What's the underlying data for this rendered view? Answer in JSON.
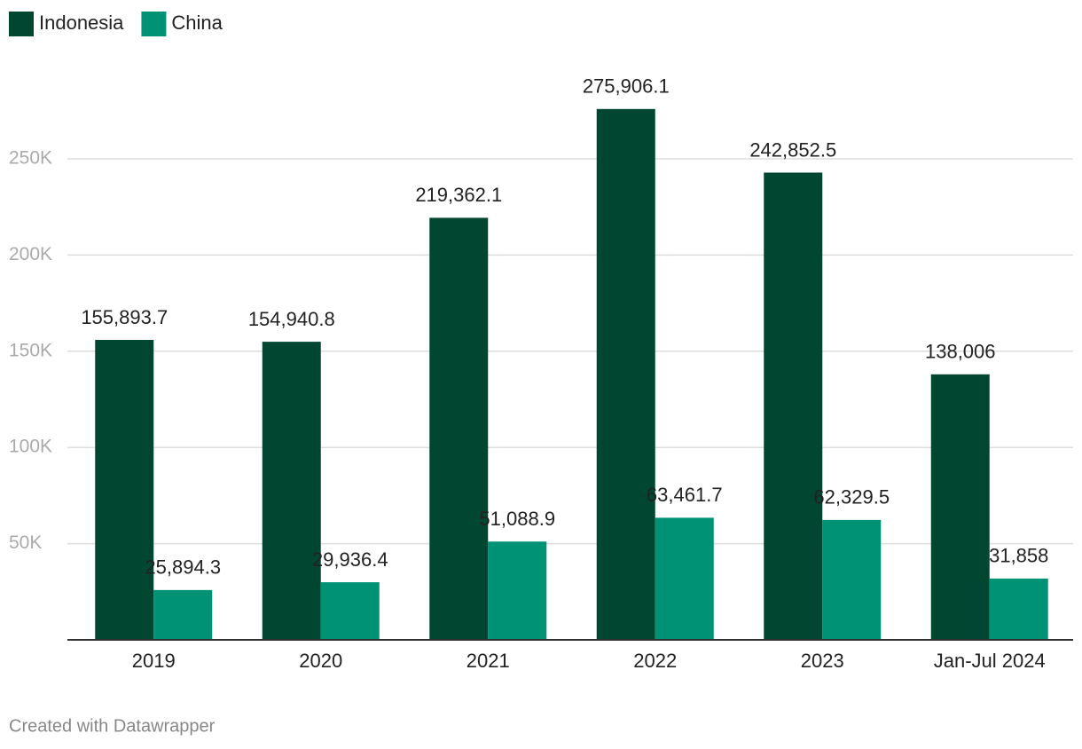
{
  "chart_data": {
    "type": "bar",
    "categories": [
      "2019",
      "2020",
      "2021",
      "2022",
      "2023",
      "Jan-Jul 2024"
    ],
    "series": [
      {
        "name": "Indonesia",
        "color": "#014631",
        "values": [
          155893.7,
          154940.8,
          219362.1,
          275906.1,
          242852.5,
          138006
        ],
        "value_labels": [
          "155,893.7",
          "154,940.8",
          "219,362.1",
          "275,906.1",
          "242,852.5",
          "138,006"
        ]
      },
      {
        "name": "China",
        "color": "#009275",
        "values": [
          25894.3,
          29936.4,
          51088.9,
          63461.7,
          62329.5,
          31858
        ],
        "value_labels": [
          "25,894.3",
          "29,936.4",
          "51,088.9",
          "63,461.7",
          "62,329.5",
          "31,858"
        ]
      }
    ],
    "ylim": [
      0,
      300000
    ],
    "yticks": [
      {
        "value": 50000,
        "label": "50K"
      },
      {
        "value": 100000,
        "label": "100K"
      },
      {
        "value": 150000,
        "label": "150K"
      },
      {
        "value": 200000,
        "label": "200K"
      },
      {
        "value": 250000,
        "label": "250K"
      }
    ],
    "grid": true,
    "credit": "Created with Datawrapper"
  }
}
